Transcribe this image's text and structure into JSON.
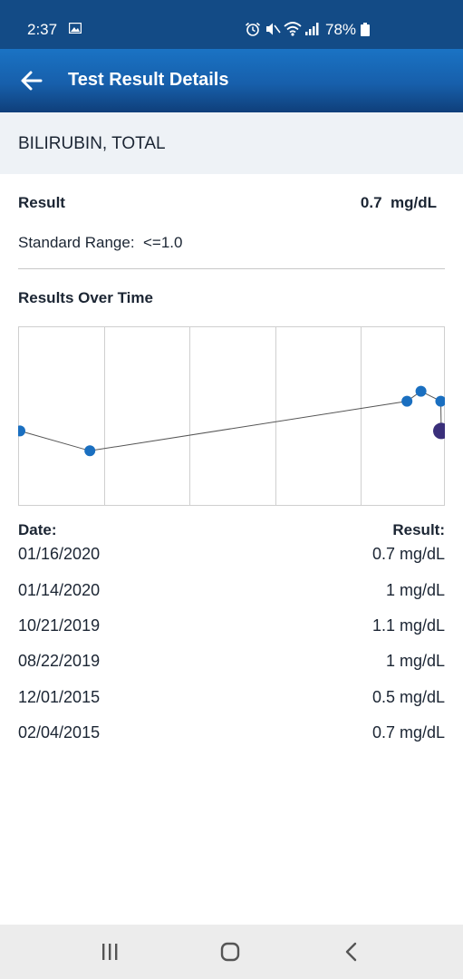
{
  "status_bar": {
    "time": "2:37",
    "battery": "78%",
    "icons": [
      "image-icon",
      "alarm-icon",
      "mute-icon",
      "wifi-icon",
      "signal-icon",
      "battery-icon"
    ]
  },
  "app_bar": {
    "title": "Test Result Details",
    "back_icon": "back-arrow-icon"
  },
  "test": {
    "name": "BILIRUBIN, TOTAL",
    "result_label": "Result",
    "result_value": "0.7  mg/dL",
    "standard_range": "Standard Range:  <=1.0"
  },
  "results_over_time": {
    "heading": "Results Over Time",
    "date_header": "Date:",
    "result_header": "Result:"
  },
  "history": [
    {
      "date": "01/16/2020",
      "result": "0.7 mg/dL"
    },
    {
      "date": "01/14/2020",
      "result": "1 mg/dL"
    },
    {
      "date": "10/21/2019",
      "result": "1.1 mg/dL"
    },
    {
      "date": "08/22/2019",
      "result": "1 mg/dL"
    },
    {
      "date": "12/01/2015",
      "result": "0.5 mg/dL"
    },
    {
      "date": "02/04/2015",
      "result": "0.7 mg/dL"
    }
  ],
  "chart_data": {
    "type": "line",
    "x": [
      "02/04/2015",
      "12/01/2015",
      "08/22/2019",
      "10/21/2019",
      "01/14/2020",
      "01/16/2020"
    ],
    "y": [
      0.7,
      0.5,
      1,
      1.1,
      1,
      0.7
    ],
    "unit": "mg/dL",
    "grid": true,
    "highlight_last": true,
    "colors": {
      "point": "#1a6fc0",
      "last_point": "#3a2f7a",
      "line": "#555555",
      "grid": "#cfcfcf"
    }
  },
  "nav_bar": {
    "icons": [
      "recent-apps-icon",
      "home-icon",
      "back-icon"
    ]
  }
}
